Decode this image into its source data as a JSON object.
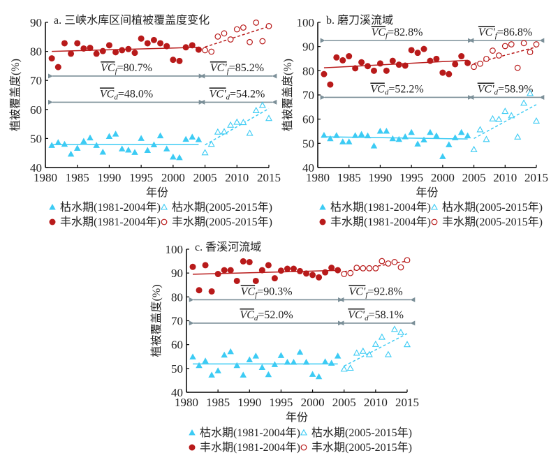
{
  "colors": {
    "wet": "#b81a1a",
    "dry": "#3ccbf4",
    "arrow": "#7b8f98"
  },
  "legend": {
    "dry_before": "枯水期(1981-2004年)",
    "dry_after": "枯水期(2005-2015年)",
    "wet_before": "丰水期(1981-2004年)",
    "wet_after": "丰水期(2005-2015年)"
  },
  "chart_data": [
    {
      "type": "scatter",
      "title": "a. 三峡水库区间植被覆盖度变化",
      "xlabel": "年份",
      "ylabel": "植被覆盖度(%)",
      "xlim": [
        1980,
        2015
      ],
      "ylim": [
        40,
        90
      ],
      "xticks": [
        1980,
        1985,
        1990,
        1995,
        2000,
        2005,
        2010,
        2015
      ],
      "yticks": [
        40,
        50,
        60,
        70,
        80,
        90
      ],
      "annotations": {
        "wet_before": {
          "label": "VC",
          "sub": "f",
          "prime": false,
          "value": "=80.7%"
        },
        "wet_after": {
          "label": "VC'",
          "sub": "f",
          "prime": true,
          "value": "=85.2%"
        },
        "dry_before": {
          "label": "VC",
          "sub": "d",
          "prime": false,
          "value": "=48.0%"
        },
        "dry_after": {
          "label": "VC'",
          "sub": "d",
          "prime": true,
          "value": "=54.2%"
        },
        "wet_arrow_y": 71.5,
        "dry_arrow_y": 62.5
      },
      "series": [
        {
          "name": "丰水期(1981-2004年)",
          "x": [
            1981,
            1982,
            1983,
            1984,
            1985,
            1986,
            1987,
            1988,
            1989,
            1990,
            1991,
            1992,
            1993,
            1994,
            1995,
            1996,
            1997,
            1998,
            1999,
            2000,
            2001,
            2002,
            2003,
            2004
          ],
          "y": [
            77.6,
            74.6,
            82.8,
            79.2,
            82.8,
            81.0,
            81.2,
            79.2,
            80.1,
            82.1,
            79.7,
            80.4,
            80.8,
            79.5,
            84.4,
            82.8,
            83.9,
            82.8,
            81.8,
            77.1,
            76.7,
            81.4,
            82.1,
            80.6
          ],
          "trend": [
            80.0,
            81.4
          ]
        },
        {
          "name": "丰水期(2005-2015年)",
          "x": [
            2005,
            2006,
            2007,
            2008,
            2009,
            2010,
            2011,
            2012,
            2013,
            2014,
            2015
          ],
          "y": [
            80.4,
            79.9,
            85.1,
            86.2,
            84.1,
            87.6,
            88.2,
            83.2,
            89.9,
            83.5,
            88.7
          ],
          "trend": [
            81.5,
            88.6
          ]
        },
        {
          "name": "枯水期(1981-2004年)",
          "x": [
            1981,
            1982,
            1983,
            1984,
            1985,
            1986,
            1987,
            1988,
            1989,
            1990,
            1991,
            1992,
            1993,
            1994,
            1995,
            1996,
            1997,
            1998,
            1999,
            2000,
            2001,
            2002,
            2003,
            2004
          ],
          "y": [
            47.6,
            48.6,
            48.0,
            44.6,
            46.6,
            49.0,
            50.2,
            47.6,
            45.3,
            50.7,
            51.5,
            46.4,
            46.0,
            45.2,
            50.0,
            45.9,
            47.8,
            50.9,
            46.4,
            43.6,
            43.4,
            49.7,
            50.5,
            49.6
          ],
          "trend": [
            47.9,
            47.9
          ]
        },
        {
          "name": "枯水期(2005-2015年)",
          "x": [
            2005,
            2006,
            2007,
            2008,
            2009,
            2010,
            2011,
            2012,
            2013,
            2014,
            2015
          ],
          "y": [
            45.1,
            48.0,
            52.2,
            52.3,
            54.6,
            55.6,
            55.5,
            51.8,
            59.6,
            61.4,
            56.9
          ],
          "trend": [
            47.8,
            60.3
          ]
        }
      ]
    },
    {
      "type": "scatter",
      "title": "b. 磨刀溪流域",
      "xlabel": "年份",
      "ylabel": "植被覆盖度(%)",
      "xlim": [
        1980,
        2015
      ],
      "ylim": [
        40,
        100
      ],
      "xticks": [
        1980,
        1985,
        1990,
        1995,
        2000,
        2005,
        2010,
        2015
      ],
      "yticks": [
        40,
        50,
        60,
        70,
        80,
        90,
        100
      ],
      "annotations": {
        "wet_before": {
          "label": "VC",
          "sub": "f",
          "prime": false,
          "value": "=82.8%"
        },
        "wet_after": {
          "label": "VC'",
          "sub": "f",
          "prime": true,
          "value": "=86.8%"
        },
        "dry_before": {
          "label": "VC",
          "sub": "d",
          "prime": false,
          "value": "=52.2%"
        },
        "dry_after": {
          "label": "VC'",
          "sub": "d",
          "prime": true,
          "value": "=58.9%"
        },
        "wet_arrow_y": 92.5,
        "dry_arrow_y": 69.0
      },
      "series": [
        {
          "name": "丰水期(1981-2004年)",
          "x": [
            1981,
            1982,
            1983,
            1984,
            1985,
            1986,
            1987,
            1988,
            1989,
            1990,
            1991,
            1992,
            1993,
            1994,
            1995,
            1996,
            1997,
            1998,
            1999,
            2000,
            2001,
            2002,
            2003,
            2004
          ],
          "y": [
            78.6,
            74.3,
            85.5,
            84.3,
            86.0,
            81.0,
            83.5,
            81.9,
            80.0,
            83.0,
            80.0,
            84.1,
            82.5,
            82.1,
            88.5,
            87.4,
            89.0,
            84.1,
            84.9,
            79.2,
            78.6,
            82.7,
            86.0,
            83.2
          ],
          "trend": [
            81.2,
            84.3
          ]
        },
        {
          "name": "丰水期(2005-2015年)",
          "x": [
            2005,
            2006,
            2007,
            2008,
            2009,
            2010,
            2011,
            2012,
            2013,
            2014,
            2015
          ],
          "y": [
            81.6,
            82.9,
            84.9,
            88.3,
            86.3,
            90.2,
            90.9,
            81.2,
            91.4,
            87.7,
            90.9
          ],
          "trend": [
            83.0,
            89.8
          ]
        },
        {
          "name": "枯水期(1981-2004年)",
          "x": [
            1981,
            1982,
            1983,
            1984,
            1985,
            1986,
            1987,
            1988,
            1989,
            1990,
            1991,
            1992,
            1993,
            1994,
            1995,
            1996,
            1997,
            1998,
            1999,
            2000,
            2001,
            2002,
            2003,
            2004
          ],
          "y": [
            53.3,
            51.9,
            53.2,
            50.6,
            50.6,
            53.2,
            53.7,
            53.1,
            48.9,
            55.0,
            55.0,
            51.9,
            51.6,
            52.7,
            54.5,
            49.7,
            51.4,
            54.5,
            53.1,
            44.5,
            49.4,
            52.3,
            54.5,
            53.1
          ],
          "trend": [
            52.7,
            51.8
          ]
        },
        {
          "name": "枯水期(2005-2015年)",
          "x": [
            2005,
            2006,
            2007,
            2008,
            2009,
            2010,
            2011,
            2012,
            2013,
            2014,
            2015
          ],
          "y": [
            47.4,
            55.6,
            51.6,
            60.1,
            59.9,
            63.2,
            61.4,
            52.6,
            66.6,
            70.6,
            59.2
          ],
          "trend": [
            52.0,
            66.0
          ]
        }
      ]
    },
    {
      "type": "scatter",
      "title": "c. 香溪河流域",
      "xlabel": "年份",
      "ylabel": "植被覆盖度(%)",
      "xlim": [
        1980,
        2015
      ],
      "ylim": [
        40,
        100
      ],
      "xticks": [
        1980,
        1985,
        1990,
        1995,
        2000,
        2005,
        2010,
        2015
      ],
      "yticks": [
        40,
        50,
        60,
        70,
        80,
        90,
        100
      ],
      "annotations": {
        "wet_before": {
          "label": "VC",
          "sub": "f",
          "prime": false,
          "value": "=90.3%"
        },
        "wet_after": {
          "label": "VC'",
          "sub": "f",
          "prime": true,
          "value": "=92.8%"
        },
        "dry_before": {
          "label": "VC",
          "sub": "d",
          "prime": false,
          "value": "=52.0%"
        },
        "dry_after": {
          "label": "VC'",
          "sub": "d",
          "prime": true,
          "value": "=58.1%"
        },
        "wet_arrow_y": 78.8,
        "dry_arrow_y": 69.0
      },
      "series": [
        {
          "name": "丰水期(1981-2004年)",
          "x": [
            1981,
            1982,
            1983,
            1984,
            1985,
            1986,
            1987,
            1988,
            1989,
            1990,
            1991,
            1992,
            1993,
            1994,
            1995,
            1996,
            1997,
            1998,
            1999,
            2000,
            2001,
            2002,
            2003,
            2004
          ],
          "y": [
            92.6,
            82.8,
            93.3,
            82.3,
            89.6,
            91.2,
            91.2,
            86.7,
            94.9,
            94.6,
            86.7,
            91.2,
            93.3,
            87.8,
            91.0,
            91.8,
            91.8,
            90.8,
            89.8,
            89.2,
            88.2,
            90.3,
            92.2,
            91.2
          ],
          "trend": [
            89.5,
            91.1
          ]
        },
        {
          "name": "丰水期(2005-2015年)",
          "x": [
            2005,
            2006,
            2007,
            2008,
            2009,
            2010,
            2011,
            2012,
            2013,
            2014,
            2015
          ],
          "y": [
            89.6,
            90.0,
            92.2,
            92.0,
            92.0,
            92.0,
            95.0,
            94.0,
            94.6,
            92.4,
            95.4
          ],
          "trend": [
            90.6,
            95.0
          ]
        },
        {
          "name": "枯水期(1981-2004年)",
          "x": [
            1981,
            1982,
            1983,
            1984,
            1985,
            1986,
            1987,
            1988,
            1989,
            1990,
            1991,
            1992,
            1993,
            1994,
            1995,
            1996,
            1997,
            1998,
            1999,
            2000,
            2001,
            2002,
            2003,
            2004
          ],
          "y": [
            54.8,
            51.2,
            53.1,
            47.2,
            49.0,
            55.6,
            57.0,
            51.2,
            47.2,
            53.6,
            55.2,
            50.4,
            47.4,
            51.6,
            55.4,
            52.6,
            52.6,
            56.8,
            52.6,
            47.5,
            46.5,
            52.8,
            52.2,
            55.2
          ],
          "trend": [
            51.9,
            51.9
          ]
        },
        {
          "name": "枯水期(2005-2015年)",
          "x": [
            2005,
            2006,
            2007,
            2008,
            2009,
            2010,
            2011,
            2012,
            2013,
            2014,
            2015
          ],
          "y": [
            49.7,
            50.1,
            56.4,
            57.2,
            55.8,
            60.1,
            63.1,
            55.8,
            66.4,
            65.1,
            60.0
          ],
          "trend": [
            51.0,
            64.6
          ]
        }
      ]
    }
  ]
}
